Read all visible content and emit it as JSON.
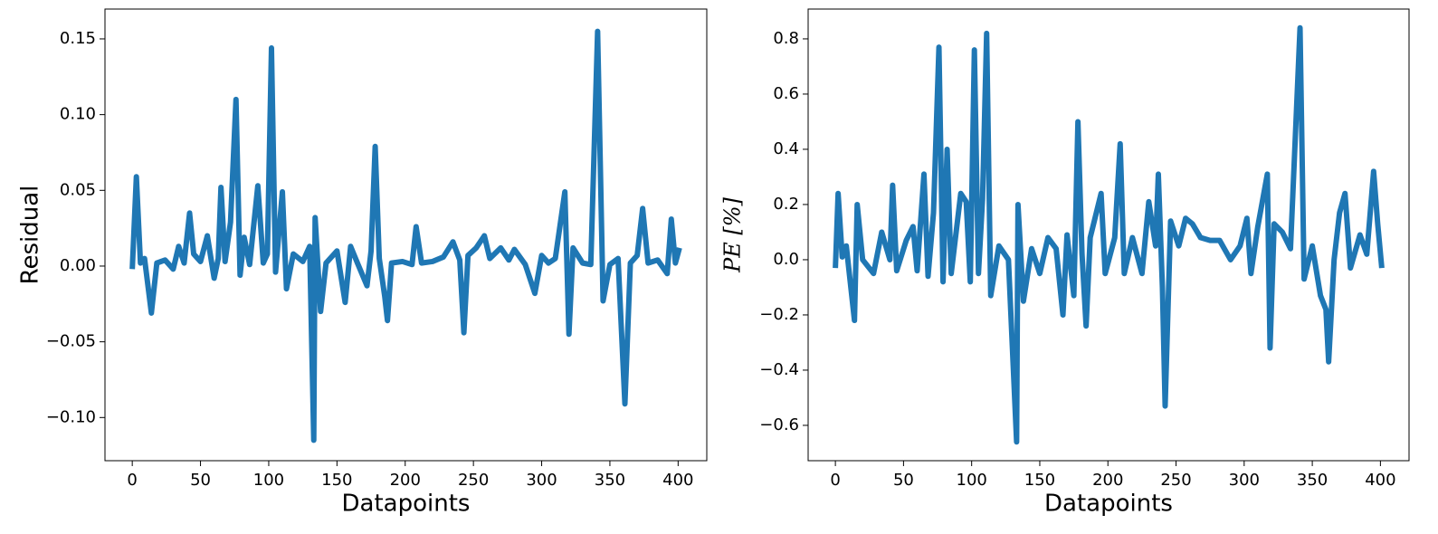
{
  "chart_data": [
    {
      "type": "line",
      "xlabel": "Datapoints",
      "ylabel": "Residual",
      "color": "#1f77b4",
      "x": [
        0,
        3,
        6,
        9,
        14,
        18,
        24,
        30,
        34,
        38,
        42,
        45,
        50,
        55,
        60,
        63,
        65,
        68,
        72,
        76,
        79,
        82,
        86,
        92,
        96,
        99,
        102,
        105,
        110,
        113,
        118,
        125,
        130,
        133,
        134,
        138,
        142,
        150,
        156,
        160,
        165,
        172,
        175,
        178,
        181,
        185,
        187,
        190,
        198,
        205,
        208,
        212,
        220,
        228,
        235,
        240,
        243,
        246,
        252,
        258,
        262,
        270,
        276,
        280,
        288,
        295,
        300,
        305,
        310,
        317,
        320,
        323,
        330,
        336,
        341,
        345,
        350,
        356,
        361,
        365,
        370,
        374,
        378,
        385,
        392,
        395,
        398,
        401
      ],
      "values": [
        -0.002,
        0.059,
        0.002,
        0.005,
        -0.031,
        0.002,
        0.004,
        -0.002,
        0.013,
        0.002,
        0.035,
        0.008,
        0.003,
        0.02,
        -0.008,
        0.005,
        0.052,
        0.003,
        0.029,
        0.11,
        -0.006,
        0.019,
        0.001,
        0.053,
        0.002,
        0.008,
        0.144,
        -0.004,
        0.049,
        -0.015,
        0.008,
        0.003,
        0.013,
        -0.115,
        0.032,
        -0.03,
        0.002,
        0.01,
        -0.024,
        0.013,
        0.002,
        -0.013,
        0.01,
        0.079,
        0.005,
        -0.02,
        -0.036,
        0.002,
        0.003,
        0.001,
        0.026,
        0.002,
        0.003,
        0.006,
        0.016,
        0.004,
        -0.044,
        0.007,
        0.012,
        0.02,
        0.005,
        0.012,
        0.004,
        0.011,
        0.001,
        -0.018,
        0.007,
        0.002,
        0.005,
        0.049,
        -0.045,
        0.012,
        0.002,
        0.001,
        0.155,
        -0.023,
        0.001,
        0.005,
        -0.091,
        0.002,
        0.007,
        0.038,
        0.002,
        0.004,
        -0.005,
        0.031,
        0.002,
        0.012
      ],
      "xlim": [
        -20,
        421
      ],
      "xticks": [
        0,
        50,
        100,
        150,
        200,
        250,
        300,
        350,
        400
      ],
      "ylim": [
        -0.1285,
        0.1697
      ],
      "yticks": [
        {
          "value": -0.1,
          "label": "−0.10"
        },
        {
          "value": -0.05,
          "label": "−0.05"
        },
        {
          "value": 0,
          "label": "0.00"
        },
        {
          "value": 0.05,
          "label": "0.05"
        },
        {
          "value": 0.1,
          "label": "0.10"
        },
        {
          "value": 0.15,
          "label": "0.15"
        }
      ]
    },
    {
      "type": "line",
      "xlabel": "Datapoints",
      "ylabel": "PE [%]",
      "color": "#1f77b4",
      "x": [
        0,
        2,
        5,
        8,
        14,
        16,
        20,
        28,
        34,
        40,
        42,
        45,
        52,
        57,
        60,
        65,
        68,
        72,
        76,
        79,
        82,
        85,
        92,
        96,
        99,
        102,
        105,
        108,
        111,
        114,
        120,
        127,
        133,
        134,
        138,
        144,
        150,
        156,
        162,
        167,
        170,
        175,
        178,
        181,
        184,
        187,
        195,
        198,
        205,
        209,
        212,
        218,
        225,
        230,
        235,
        237,
        240,
        242,
        246,
        252,
        257,
        262,
        268,
        275,
        282,
        290,
        297,
        302,
        305,
        310,
        317,
        319,
        322,
        328,
        334,
        341,
        344,
        350,
        356,
        360,
        362,
        366,
        370,
        374,
        378,
        385,
        390,
        395,
        398,
        401
      ],
      "values": [
        -0.03,
        0.24,
        0.01,
        0.05,
        -0.22,
        0.2,
        0.0,
        -0.05,
        0.1,
        0.0,
        0.27,
        -0.04,
        0.07,
        0.12,
        -0.04,
        0.31,
        -0.06,
        0.17,
        0.77,
        -0.08,
        0.4,
        -0.05,
        0.24,
        0.21,
        -0.08,
        0.76,
        -0.05,
        0.22,
        0.82,
        -0.13,
        0.05,
        0.0,
        -0.66,
        0.2,
        -0.15,
        0.04,
        -0.05,
        0.08,
        0.04,
        -0.2,
        0.09,
        -0.13,
        0.5,
        0.02,
        -0.24,
        0.08,
        0.24,
        -0.05,
        0.08,
        0.42,
        -0.05,
        0.08,
        -0.05,
        0.21,
        0.05,
        0.31,
        -0.1,
        -0.53,
        0.14,
        0.05,
        0.15,
        0.13,
        0.08,
        0.07,
        0.07,
        0.0,
        0.05,
        0.15,
        -0.05,
        0.12,
        0.31,
        -0.32,
        0.13,
        0.1,
        0.04,
        0.84,
        -0.07,
        0.05,
        -0.13,
        -0.18,
        -0.37,
        0.0,
        0.17,
        0.24,
        -0.03,
        0.09,
        0.02,
        0.32,
        0.13,
        -0.03
      ],
      "xlim": [
        -20,
        421
      ],
      "xticks": [
        0,
        50,
        100,
        150,
        200,
        250,
        300,
        350,
        400
      ],
      "ylim": [
        -0.728,
        0.908
      ],
      "yticks": [
        {
          "value": -0.6,
          "label": "−0.6"
        },
        {
          "value": -0.4,
          "label": "−0.4"
        },
        {
          "value": -0.2,
          "label": "−0.2"
        },
        {
          "value": 0,
          "label": "0.0"
        },
        {
          "value": 0.2,
          "label": "0.2"
        },
        {
          "value": 0.4,
          "label": "0.4"
        },
        {
          "value": 0.6,
          "label": "0.6"
        },
        {
          "value": 0.8,
          "label": "0.8"
        }
      ]
    }
  ]
}
